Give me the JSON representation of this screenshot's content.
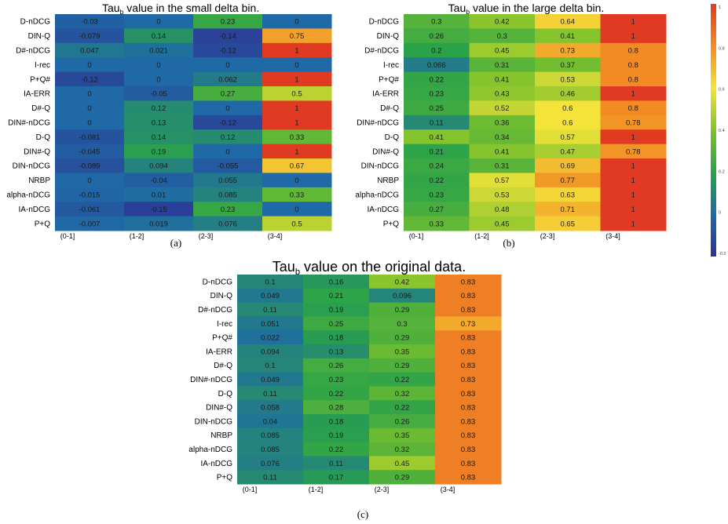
{
  "chart_data": [
    {
      "type": "heatmap",
      "panel_label": "(a)",
      "title_prefix": "Tau",
      "title_subscript": "b",
      "title_suffix": " value in the small delta bin.",
      "rows": [
        "D-nDCG",
        "DIN-Q",
        "D#-nDCG",
        "I-rec",
        "P+Q#",
        "IA-ERR",
        "D#-Q",
        "DIN#-nDCG",
        "D-Q",
        "DIN#-Q",
        "DIN-nDCG",
        "NRBP",
        "alpha-nDCG",
        "IA-nDCG",
        "P+Q"
      ],
      "columns": [
        "(0-1]",
        "(1-2]",
        "(2-3]",
        "(3-4]"
      ],
      "values": [
        [
          "-0.03",
          "0",
          "0.23",
          "0"
        ],
        [
          "-0.079",
          "0.14",
          "-0.14",
          "0.75"
        ],
        [
          "0.047",
          "0.021",
          "-0.12",
          "1"
        ],
        [
          "0",
          "0",
          "0",
          "0"
        ],
        [
          "-0.12",
          "0",
          "0.062",
          "1"
        ],
        [
          "0",
          "-0.05",
          "0.27",
          "0.5"
        ],
        [
          "0",
          "0.12",
          "0",
          "1"
        ],
        [
          "0",
          "0.13",
          "-0.12",
          "1"
        ],
        [
          "-0.081",
          "0.14",
          "0.12",
          "0.33"
        ],
        [
          "-0.045",
          "0.19",
          "0",
          "1"
        ],
        [
          "-0.089",
          "0.094",
          "-0.055",
          "0.67"
        ],
        [
          "0",
          "-0.04",
          "0.055",
          "0"
        ],
        [
          "-0.015",
          "0.01",
          "0.085",
          "0.33"
        ],
        [
          "-0.061",
          "-0.15",
          "0.23",
          "0"
        ],
        [
          "-0.007",
          "0.019",
          "0.076",
          "0.5"
        ]
      ]
    },
    {
      "type": "heatmap",
      "panel_label": "(b)",
      "title_prefix": "Tau",
      "title_subscript": "b",
      "title_suffix": " value in the large delta bin.",
      "rows": [
        "D-nDCG",
        "DIN-Q",
        "D#-nDCG",
        "I-rec",
        "P+Q#",
        "IA-ERR",
        "D#-Q",
        "DIN#-nDCG",
        "D-Q",
        "DIN#-Q",
        "DIN-nDCG",
        "NRBP",
        "alpha-nDCG",
        "IA-nDCG",
        "P+Q"
      ],
      "columns": [
        "(0-1]",
        "(1-2]",
        "(2-3]",
        "(3-4]"
      ],
      "values": [
        [
          "0.3",
          "0.42",
          "0.64",
          "1"
        ],
        [
          "0.26",
          "0.3",
          "0.41",
          "1"
        ],
        [
          "0.2",
          "0.45",
          "0.73",
          "0.8"
        ],
        [
          "0.066",
          "0.31",
          "0.37",
          "0.8"
        ],
        [
          "0.22",
          "0.41",
          "0.53",
          "0.8"
        ],
        [
          "0.23",
          "0.43",
          "0.46",
          "1"
        ],
        [
          "0.25",
          "0.52",
          "0.6",
          "0.8"
        ],
        [
          "0.11",
          "0.36",
          "0.6",
          "0.78"
        ],
        [
          "0.41",
          "0.34",
          "0.57",
          "1"
        ],
        [
          "0.21",
          "0.41",
          "0.47",
          "0.78"
        ],
        [
          "0.24",
          "0.31",
          "0.69",
          "1"
        ],
        [
          "0.22",
          "0.57",
          "0.77",
          "1"
        ],
        [
          "0.23",
          "0.53",
          "0.63",
          "1"
        ],
        [
          "0.27",
          "0.48",
          "0.71",
          "1"
        ],
        [
          "0.33",
          "0.45",
          "0.65",
          "1"
        ]
      ]
    },
    {
      "type": "heatmap",
      "panel_label": "(c)",
      "title_prefix": "Tau",
      "title_subscript": "b",
      "title_suffix": " value on the original data.",
      "rows": [
        "D-nDCG",
        "DIN-Q",
        "D#-nDCG",
        "I-rec",
        "P+Q#",
        "IA-ERR",
        "D#-Q",
        "DIN#-nDCG",
        "D-Q",
        "DIN#-Q",
        "DIN-nDCG",
        "NRBP",
        "alpha-nDCG",
        "IA-nDCG",
        "P+Q"
      ],
      "columns": [
        "(0-1]",
        "(1-2]",
        "(2-3]",
        "(3-4]"
      ],
      "values": [
        [
          "0.1",
          "0.16",
          "0.42",
          "0.83"
        ],
        [
          "0.049",
          "0.21",
          "0.096",
          "0.83"
        ],
        [
          "0.11",
          "0.19",
          "0.29",
          "0.83"
        ],
        [
          "0.051",
          "0.25",
          "0.3",
          "0.73"
        ],
        [
          "0.022",
          "0.18",
          "0.29",
          "0.83"
        ],
        [
          "0.094",
          "0.13",
          "0.35",
          "0.83"
        ],
        [
          "0.1",
          "0.26",
          "0.29",
          "0.83"
        ],
        [
          "0.049",
          "0.23",
          "0.22",
          "0.83"
        ],
        [
          "0.11",
          "0.22",
          "0.32",
          "0.83"
        ],
        [
          "0.058",
          "0.28",
          "0.22",
          "0.83"
        ],
        [
          "0.04",
          "0.18",
          "0.26",
          "0.83"
        ],
        [
          "0.085",
          "0.19",
          "0.35",
          "0.83"
        ],
        [
          "0.085",
          "0.22",
          "0.32",
          "0.83"
        ],
        [
          "0.076",
          "0.11",
          "0.45",
          "0.83"
        ],
        [
          "0.11",
          "0.17",
          "0.29",
          "0.83"
        ]
      ]
    }
  ],
  "colorbar": {
    "colormap": "blue-green-yellow-red",
    "range": [
      -0.2,
      1
    ],
    "colors": [
      "#2e3192",
      "#1f6aa6",
      "#2aa24a",
      "#7fc22c",
      "#f4e43a",
      "#f28b24",
      "#e13a22"
    ],
    "tick_labels": [
      "1",
      "0.8",
      "0.6",
      "0.4",
      "0.2",
      "0",
      "-0.2"
    ]
  }
}
